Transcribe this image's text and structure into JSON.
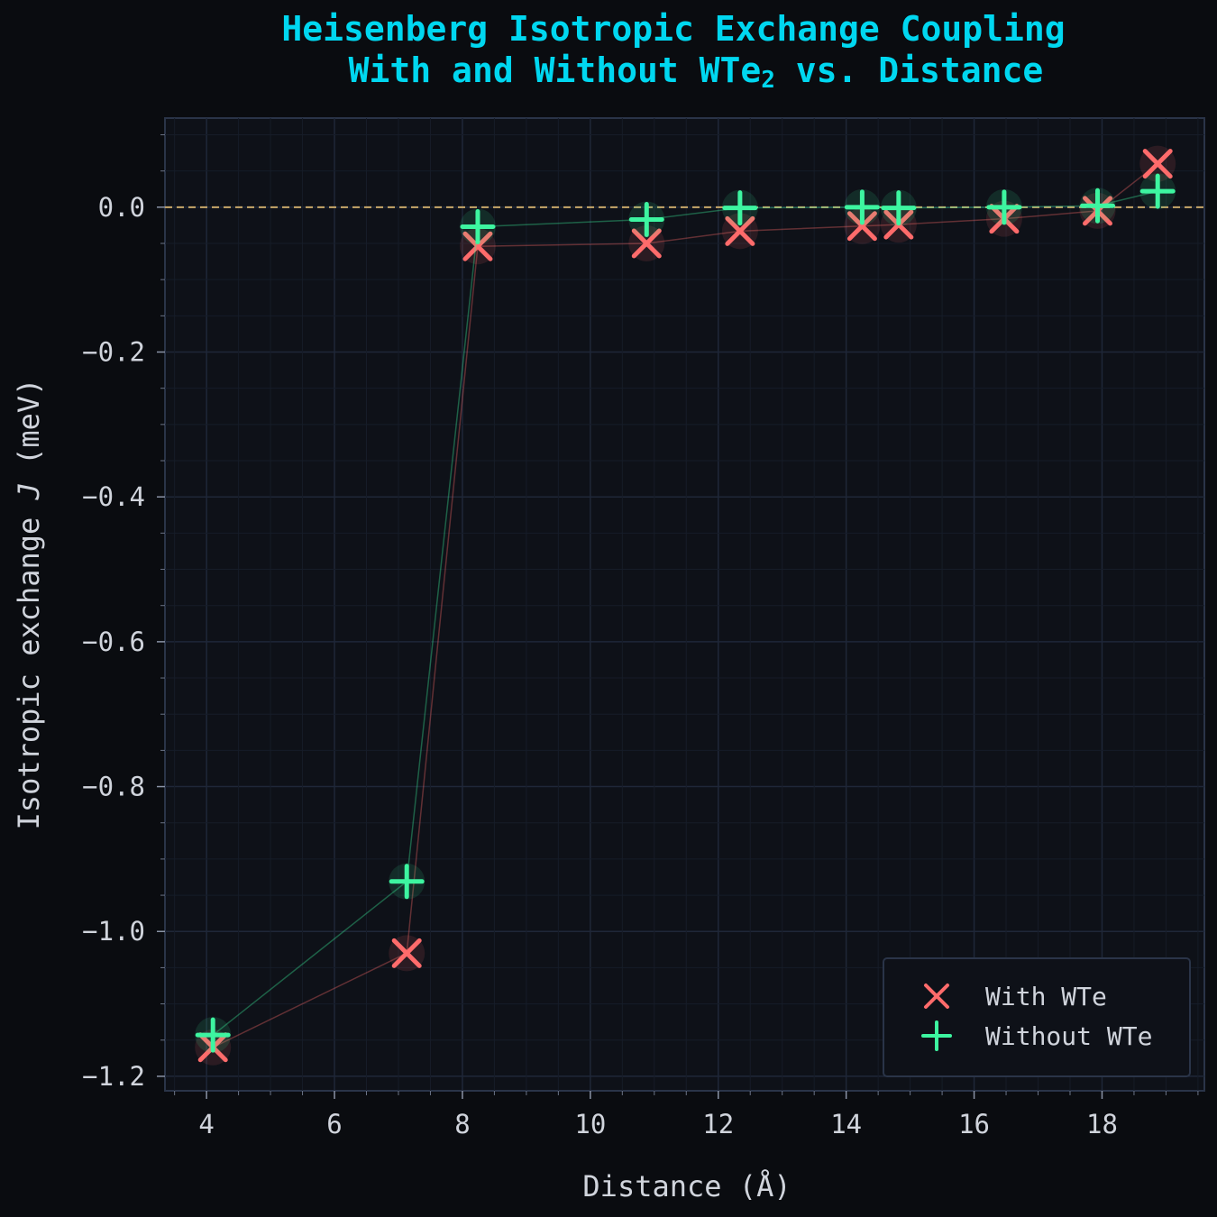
{
  "chart_data": {
    "type": "scatter",
    "title_line1": "Heisenberg Isotropic Exchange Coupling",
    "title_line2_pre": "With and Without WTe",
    "title_line2_sub": "2",
    "title_line2_post": " vs. Distance",
    "xlabel": "Distance  (Å)",
    "ylabel_pre": "Isotropic exchange  ",
    "ylabel_sym": "J",
    "ylabel_post": "  (meV)",
    "xlim": [
      3.35,
      19.6
    ],
    "ylim": [
      -1.22,
      0.123
    ],
    "xticks": [
      4,
      6,
      8,
      10,
      12,
      14,
      16,
      18
    ],
    "xtick_labels": [
      "4",
      "6",
      "8",
      "10",
      "12",
      "14",
      "16",
      "18"
    ],
    "yticks": [
      0.0,
      -0.2,
      -0.4,
      -0.6,
      -0.8,
      -1.0,
      -1.2
    ],
    "ytick_labels": [
      "0.0",
      "−0.2",
      "−0.4",
      "−0.6",
      "−0.8",
      "−1.0",
      "−1.2"
    ],
    "grid": true,
    "legend_position": "lower-right",
    "reference_line_y": 0.0,
    "series": [
      {
        "name": "With WTe",
        "marker": "x",
        "color": "#ff6b6b",
        "x": [
          4.1,
          7.13,
          8.24,
          10.88,
          12.34,
          14.25,
          14.82,
          16.47,
          17.93,
          18.87
        ],
        "y": [
          -1.16,
          -1.03,
          -0.054,
          -0.05,
          -0.033,
          -0.026,
          -0.024,
          -0.016,
          -0.005,
          0.06
        ]
      },
      {
        "name": "Without WTe",
        "marker": "+",
        "color": "#3df5a0",
        "x": [
          4.1,
          7.13,
          8.24,
          10.88,
          12.34,
          14.25,
          14.82,
          16.47,
          17.93,
          18.87
        ],
        "y": [
          -1.143,
          -0.931,
          -0.027,
          -0.017,
          -0.001,
          0.0,
          -0.001,
          0.0,
          0.002,
          0.022
        ]
      }
    ]
  }
}
